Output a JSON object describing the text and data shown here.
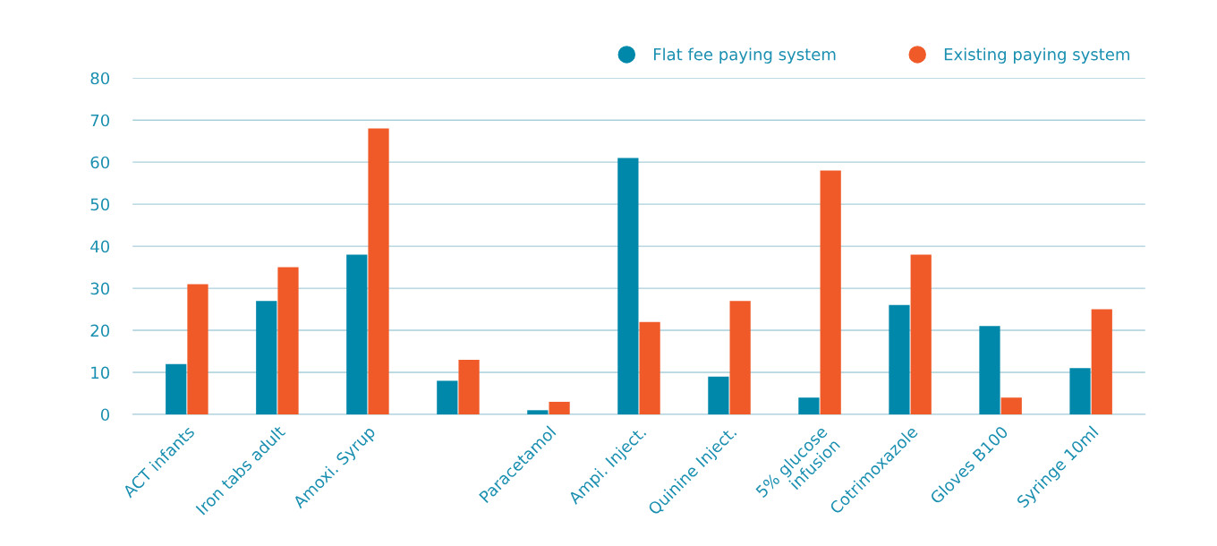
{
  "chart_data": {
    "type": "bar",
    "categories": [
      "ACT infants",
      "Iron tabs adult",
      "Amoxi. Syrup",
      null,
      "Paracetamol",
      "Ampi. Inject.",
      "Quinine Inject.",
      "5% glucose\ninfusion",
      "Cotrimoxazole",
      "Gloves B100",
      "Syringe 10ml"
    ],
    "series": [
      {
        "name": "Flat fee paying system",
        "color": "#0088ab",
        "values": [
          12,
          27,
          38,
          8,
          1,
          61,
          9,
          4,
          26,
          21,
          11
        ]
      },
      {
        "name": "Existing paying system",
        "color": "#f05a28",
        "values": [
          31,
          35,
          68,
          13,
          3,
          22,
          27,
          58,
          38,
          4,
          25
        ]
      }
    ],
    "ylim": [
      0,
      80
    ],
    "yticks": [
      0,
      10,
      20,
      30,
      40,
      50,
      60,
      70,
      80
    ],
    "grid": "y",
    "legend": "top right"
  }
}
